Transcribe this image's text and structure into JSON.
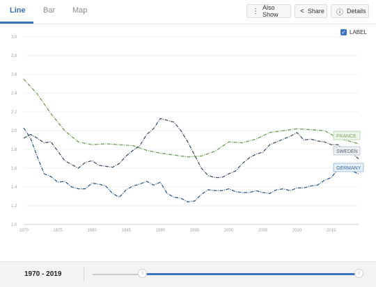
{
  "tabs": [
    {
      "label": "Line",
      "active": true
    },
    {
      "label": "Bar",
      "active": false
    },
    {
      "label": "Map",
      "active": false
    }
  ],
  "toolbar": {
    "also_show_label": "Also Show",
    "share_label": "Share",
    "details_label": "Details"
  },
  "label_toggle": {
    "label": "LABEL",
    "checked": true
  },
  "footer": {
    "range_label": "1970 - 2019",
    "range_start": 1970,
    "range_end": 2019
  },
  "chart_data": {
    "type": "line",
    "xlim": [
      1970,
      2019
    ],
    "ylim": [
      1.0,
      3.0
    ],
    "y_ticks": [
      "3.0",
      "2.8",
      "2.6",
      "2.4",
      "2.2",
      "2.0",
      "1.8",
      "1.6",
      "1.4",
      "1.2",
      "1.0"
    ],
    "x_ticks": [
      "1970",
      "1975",
      "1980",
      "1985",
      "1990",
      "1995",
      "2000",
      "2005",
      "2010",
      "2015"
    ],
    "series": [
      {
        "name": "FRANCE",
        "color": "#6f9a55",
        "x": [
          1970,
          1972,
          1974,
          1976,
          1978,
          1980,
          1982,
          1984,
          1986,
          1988,
          1990,
          1992,
          1994,
          1996,
          1998,
          2000,
          2002,
          2004,
          2006,
          2008,
          2010,
          2012,
          2014,
          2016,
          2018,
          2019
        ],
        "y": [
          2.55,
          2.39,
          2.18,
          2.0,
          1.88,
          1.85,
          1.86,
          1.85,
          1.84,
          1.79,
          1.76,
          1.74,
          1.72,
          1.73,
          1.78,
          1.88,
          1.87,
          1.91,
          1.98,
          2.0,
          2.02,
          2.01,
          2.0,
          1.92,
          1.88,
          1.86
        ]
      },
      {
        "name": "SWEDEN",
        "color": "#3d5068",
        "x": [
          1970,
          1971,
          1972,
          1973,
          1974,
          1975,
          1976,
          1977,
          1978,
          1979,
          1980,
          1981,
          1982,
          1983,
          1984,
          1985,
          1986,
          1987,
          1988,
          1989,
          1990,
          1991,
          1992,
          1993,
          1994,
          1995,
          1996,
          1997,
          1998,
          1999,
          2000,
          2001,
          2002,
          2003,
          2004,
          2005,
          2006,
          2007,
          2008,
          2009,
          2010,
          2011,
          2012,
          2013,
          2014,
          2015,
          2016,
          2017,
          2018,
          2019
        ],
        "y": [
          1.92,
          1.96,
          1.92,
          1.87,
          1.88,
          1.78,
          1.68,
          1.64,
          1.6,
          1.66,
          1.68,
          1.63,
          1.62,
          1.61,
          1.65,
          1.73,
          1.79,
          1.84,
          1.96,
          2.02,
          2.13,
          2.11,
          2.09,
          2.0,
          1.88,
          1.74,
          1.6,
          1.52,
          1.5,
          1.5,
          1.54,
          1.57,
          1.65,
          1.71,
          1.75,
          1.77,
          1.85,
          1.88,
          1.91,
          1.94,
          1.98,
          1.9,
          1.91,
          1.89,
          1.88,
          1.85,
          1.85,
          1.78,
          1.76,
          1.7
        ]
      },
      {
        "name": "GERMANY",
        "color": "#2f5a8a",
        "x": [
          1970,
          1971,
          1972,
          1973,
          1974,
          1975,
          1976,
          1977,
          1978,
          1979,
          1980,
          1981,
          1982,
          1983,
          1984,
          1985,
          1986,
          1987,
          1988,
          1989,
          1990,
          1991,
          1992,
          1993,
          1994,
          1995,
          1996,
          1997,
          1998,
          1999,
          2000,
          2001,
          2002,
          2003,
          2004,
          2005,
          2006,
          2007,
          2008,
          2009,
          2010,
          2011,
          2012,
          2013,
          2014,
          2015,
          2016,
          2017,
          2018,
          2019
        ],
        "y": [
          2.03,
          1.92,
          1.72,
          1.54,
          1.51,
          1.45,
          1.46,
          1.4,
          1.38,
          1.38,
          1.44,
          1.43,
          1.41,
          1.33,
          1.29,
          1.37,
          1.41,
          1.43,
          1.46,
          1.42,
          1.45,
          1.33,
          1.29,
          1.28,
          1.24,
          1.25,
          1.32,
          1.37,
          1.36,
          1.36,
          1.38,
          1.35,
          1.34,
          1.34,
          1.36,
          1.34,
          1.33,
          1.37,
          1.38,
          1.36,
          1.39,
          1.39,
          1.41,
          1.42,
          1.47,
          1.5,
          1.59,
          1.57,
          1.57,
          1.54
        ]
      }
    ]
  }
}
